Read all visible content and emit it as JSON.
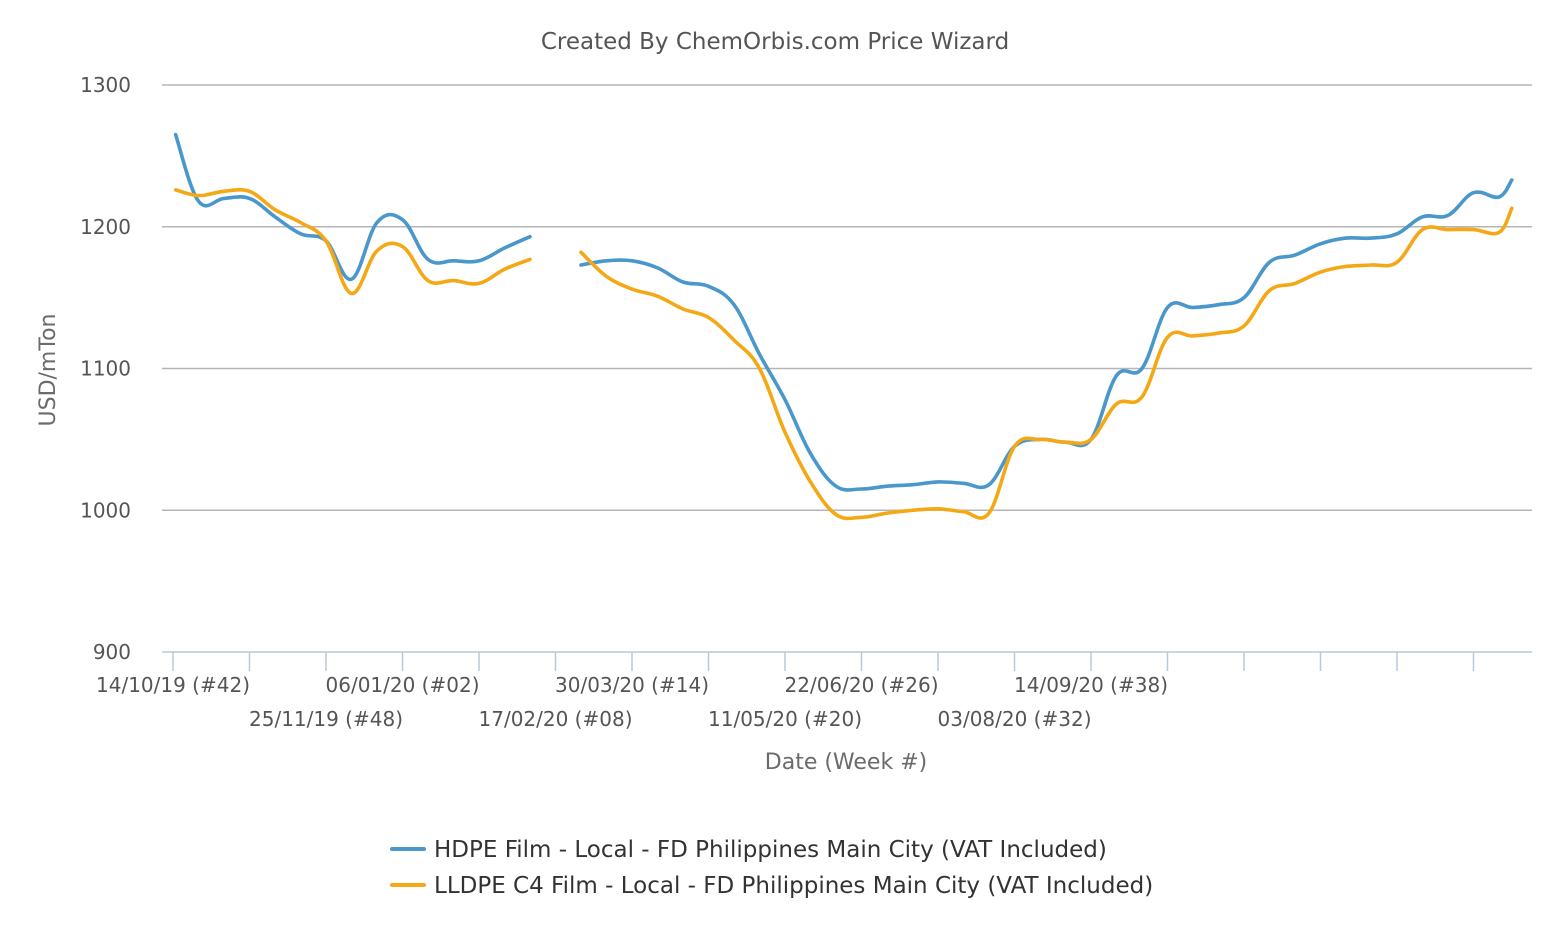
{
  "chart_data": {
    "type": "line",
    "title": "Created By ChemOrbis.com Price Wizard",
    "xlabel": "Date (Week #)",
    "ylabel": "USD/mTon",
    "ylim": [
      900,
      1300
    ],
    "yticks": [
      900,
      1000,
      1100,
      1200,
      1300
    ],
    "grid": true,
    "legend_position": "bottom",
    "x_start_label": "14/10/19 (#42)",
    "x_start_week_index": 0,
    "x_ticks": [
      {
        "week": 0,
        "label": "14/10/19 (#42)"
      },
      {
        "week": 3,
        "label": ""
      },
      {
        "week": 6,
        "label": "25/11/19 (#48)"
      },
      {
        "week": 9,
        "label": "06/01/20 (#02)"
      },
      {
        "week": 12,
        "label": ""
      },
      {
        "week": 15,
        "label": "17/02/20 (#08)"
      },
      {
        "week": 18,
        "label": "30/03/20 (#14)"
      },
      {
        "week": 21,
        "label": ""
      },
      {
        "week": 24,
        "label": "11/05/20 (#20)"
      },
      {
        "week": 27,
        "label": "22/06/20 (#26)"
      },
      {
        "week": 30,
        "label": ""
      },
      {
        "week": 33,
        "label": "03/08/20 (#32)"
      },
      {
        "week": 36,
        "label": "14/09/20 (#38)"
      },
      {
        "week": 39,
        "label": ""
      },
      {
        "week": 42,
        "label": ""
      },
      {
        "week": 45,
        "label": ""
      },
      {
        "week": 48,
        "label": ""
      },
      {
        "week": 51,
        "label": ""
      }
    ],
    "x_ticks_shown": [
      0,
      3,
      6,
      9,
      12,
      15,
      18,
      21,
      24,
      27,
      30,
      33,
      36,
      39,
      42,
      45,
      48,
      51
    ],
    "series": [
      {
        "name": "HDPE Film - Local - FD Philippines Main City (VAT Included)",
        "color": "#4a97cc",
        "points": [
          [
            0.1,
            1265
          ],
          [
            1.0,
            1218
          ],
          [
            2.0,
            1220
          ],
          [
            3.0,
            1220
          ],
          [
            4.0,
            1207
          ],
          [
            5.0,
            1195
          ],
          [
            6.0,
            1190
          ],
          [
            7.0,
            1163
          ],
          [
            8.0,
            1203
          ],
          [
            9.0,
            1205
          ],
          [
            10.0,
            1177
          ],
          [
            11.0,
            1176
          ],
          [
            12.0,
            1176
          ],
          [
            13.0,
            1185
          ],
          [
            14.0,
            1193
          ],
          null,
          [
            16.0,
            1173
          ],
          [
            17.0,
            1176
          ],
          [
            18.0,
            1176
          ],
          [
            19.0,
            1171
          ],
          [
            20.0,
            1161
          ],
          [
            21.0,
            1158
          ],
          [
            22.0,
            1145
          ],
          [
            23.0,
            1110
          ],
          [
            24.0,
            1078
          ],
          [
            25.0,
            1040
          ],
          [
            26.0,
            1017
          ],
          [
            27.0,
            1015
          ],
          [
            28.0,
            1017
          ],
          [
            29.0,
            1018
          ],
          [
            30.0,
            1020
          ],
          [
            31.0,
            1019
          ],
          [
            32.0,
            1018
          ],
          [
            33.0,
            1045
          ],
          [
            34.0,
            1050
          ],
          [
            35.0,
            1048
          ],
          [
            36.0,
            1050
          ],
          [
            37.0,
            1095
          ],
          [
            38.0,
            1100
          ],
          [
            39.0,
            1143
          ],
          [
            40.0,
            1143
          ],
          [
            41.0,
            1145
          ],
          [
            42.0,
            1150
          ],
          [
            43.0,
            1175
          ],
          [
            44.0,
            1180
          ],
          [
            45.0,
            1188
          ],
          [
            46.0,
            1192
          ],
          [
            47.0,
            1192
          ],
          [
            48.0,
            1195
          ],
          [
            49.0,
            1207
          ],
          [
            50.0,
            1208
          ],
          [
            51.0,
            1224
          ],
          [
            52.0,
            1221
          ],
          [
            52.5,
            1233
          ]
        ]
      },
      {
        "name": "LLDPE C4 Film - Local - FD Philippines Main City (VAT Included)",
        "color": "#f5a816",
        "points": [
          [
            0.1,
            1226
          ],
          [
            1.0,
            1222
          ],
          [
            2.0,
            1225
          ],
          [
            3.0,
            1225
          ],
          [
            4.0,
            1212
          ],
          [
            5.0,
            1203
          ],
          [
            6.0,
            1190
          ],
          [
            7.0,
            1153
          ],
          [
            8.0,
            1183
          ],
          [
            9.0,
            1186
          ],
          [
            10.0,
            1162
          ],
          [
            11.0,
            1162
          ],
          [
            12.0,
            1160
          ],
          [
            13.0,
            1170
          ],
          [
            14.0,
            1177
          ],
          null,
          [
            16.0,
            1182
          ],
          [
            17.0,
            1165
          ],
          [
            18.0,
            1156
          ],
          [
            19.0,
            1151
          ],
          [
            20.0,
            1142
          ],
          [
            21.0,
            1136
          ],
          [
            22.0,
            1120
          ],
          [
            23.0,
            1100
          ],
          [
            24.0,
            1055
          ],
          [
            25.0,
            1020
          ],
          [
            26.0,
            997
          ],
          [
            27.0,
            995
          ],
          [
            28.0,
            998
          ],
          [
            29.0,
            1000
          ],
          [
            30.0,
            1001
          ],
          [
            31.0,
            999
          ],
          [
            32.0,
            998
          ],
          [
            33.0,
            1045
          ],
          [
            34.0,
            1050
          ],
          [
            35.0,
            1048
          ],
          [
            36.0,
            1050
          ],
          [
            37.0,
            1075
          ],
          [
            38.0,
            1080
          ],
          [
            39.0,
            1122
          ],
          [
            40.0,
            1123
          ],
          [
            41.0,
            1125
          ],
          [
            42.0,
            1130
          ],
          [
            43.0,
            1155
          ],
          [
            44.0,
            1160
          ],
          [
            45.0,
            1168
          ],
          [
            46.0,
            1172
          ],
          [
            47.0,
            1173
          ],
          [
            48.0,
            1175
          ],
          [
            49.0,
            1198
          ],
          [
            50.0,
            1198
          ],
          [
            51.0,
            1198
          ],
          [
            52.0,
            1196
          ],
          [
            52.5,
            1213
          ]
        ]
      }
    ]
  }
}
